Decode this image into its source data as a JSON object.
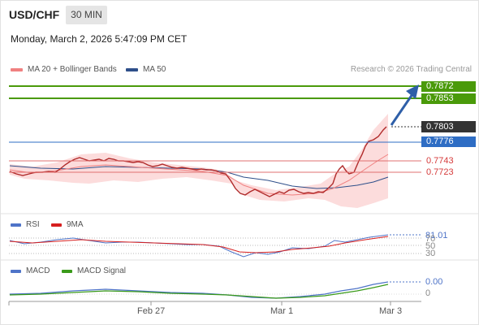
{
  "header": {
    "symbol": "USD/CHF",
    "timeframe": "30 MIN",
    "datetime": "Monday, March 2, 2026 5:47:09 PM CET"
  },
  "main_legend": {
    "ma20_label": "MA 20 + Bollinger Bands",
    "ma50_label": "MA 50",
    "ma20_color": "#f08080",
    "ma50_color": "#2e4f8a",
    "research": "Research © 2026 Trading Central"
  },
  "levels": {
    "target1": "0.7872",
    "target2": "0.7853",
    "last_price": "0.7803",
    "pivot": "0.7776",
    "support1": "0.7743",
    "support2": "0.7723"
  },
  "rsi": {
    "label": "RSI",
    "ma_label": "9MA",
    "rsi_color": "#4f74c8",
    "ma_color": "#d61f1f",
    "value": "81.01",
    "level_70": "70",
    "level_50": "50",
    "level_30": "30"
  },
  "macd": {
    "label": "MACD",
    "signal_label": "MACD Signal",
    "macd_color": "#4f74c8",
    "signal_color": "#3a9a1a",
    "value": "0.00",
    "zero": "0"
  },
  "x_axis": {
    "labels": [
      "Feb 27",
      "Mar 1",
      "Mar 3"
    ]
  },
  "colors": {
    "green_level": "#4a9a0a",
    "blue_level": "#2e6dc4",
    "red_level": "#d63b3b",
    "arrow": "#2e5fa8"
  }
}
